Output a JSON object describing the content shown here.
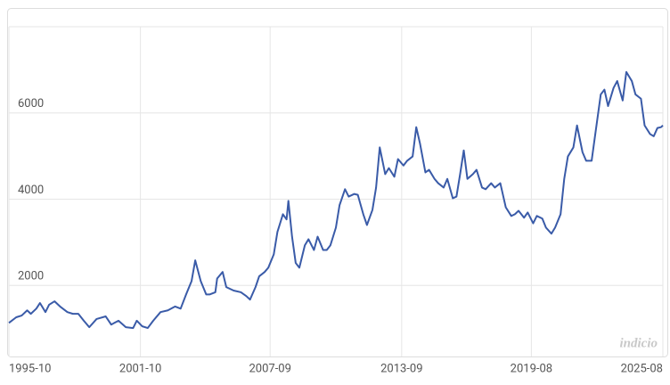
{
  "chart_data": {
    "type": "line",
    "watermark": "indicio",
    "xlim": [
      "1995-10",
      "2025-08"
    ],
    "xticks": [
      "1995-10",
      "2001-10",
      "2007-09",
      "2013-09",
      "2019-08",
      "2025-08"
    ],
    "ylim": [
      350,
      8000
    ],
    "yticks": [
      2000,
      4000,
      6000
    ],
    "grid": true,
    "series": [
      {
        "name": null,
        "color": "#3a5ba8",
        "x": [
          "1995-10",
          "1996-02",
          "1996-05",
          "1996-08",
          "1996-10",
          "1997-01",
          "1997-03",
          "1997-06",
          "1997-08",
          "1997-11",
          "1998-02",
          "1998-06",
          "1998-09",
          "1998-12",
          "1999-03",
          "1999-06",
          "1999-10",
          "2000-03",
          "2000-06",
          "2000-10",
          "2001-02",
          "2001-06",
          "2001-08",
          "2001-11",
          "2002-02",
          "2002-05",
          "2002-09",
          "2003-01",
          "2003-05",
          "2003-08",
          "2003-11",
          "2004-02",
          "2004-04",
          "2004-07",
          "2004-10",
          "2004-12",
          "2005-03",
          "2005-04",
          "2005-07",
          "2005-09",
          "2006-01",
          "2006-05",
          "2006-08",
          "2006-10",
          "2007-01",
          "2007-03",
          "2007-06",
          "2007-08",
          "2007-11",
          "2008-01",
          "2008-04",
          "2008-06",
          "2008-07",
          "2008-09",
          "2008-11",
          "2009-01",
          "2009-04",
          "2009-06",
          "2009-09",
          "2009-11",
          "2010-02",
          "2010-04",
          "2010-06",
          "2010-09",
          "2010-11",
          "2011-02",
          "2011-04",
          "2011-07",
          "2011-09",
          "2011-12",
          "2012-02",
          "2012-05",
          "2012-07",
          "2012-09",
          "2012-12",
          "2013-02",
          "2013-05",
          "2013-07",
          "2013-10",
          "2013-12",
          "2014-03",
          "2014-05",
          "2014-07",
          "2014-10",
          "2014-12",
          "2015-03",
          "2015-05",
          "2015-08",
          "2015-10",
          "2016-01",
          "2016-03",
          "2016-05",
          "2016-07",
          "2016-09",
          "2016-12",
          "2017-02",
          "2017-05",
          "2017-07",
          "2017-10",
          "2017-12",
          "2018-03",
          "2018-06",
          "2018-09",
          "2018-11",
          "2019-01",
          "2019-04",
          "2019-06",
          "2019-09",
          "2019-11",
          "2020-02",
          "2020-04",
          "2020-07",
          "2020-09",
          "2020-12",
          "2021-02",
          "2021-04",
          "2021-07",
          "2021-09",
          "2021-12",
          "2022-02",
          "2022-05",
          "2022-07",
          "2022-10",
          "2022-12",
          "2023-02",
          "2023-05",
          "2023-07",
          "2023-10",
          "2023-12",
          "2024-03",
          "2024-05",
          "2024-08",
          "2024-10",
          "2025-01",
          "2025-03",
          "2025-05",
          "2025-07",
          "2025-08"
        ],
        "values": [
          1130,
          1260,
          1300,
          1420,
          1340,
          1460,
          1590,
          1380,
          1550,
          1630,
          1510,
          1380,
          1340,
          1340,
          1180,
          1030,
          1220,
          1280,
          1090,
          1180,
          1030,
          1010,
          1180,
          1050,
          1010,
          1180,
          1380,
          1420,
          1510,
          1460,
          1790,
          2100,
          2580,
          2100,
          1790,
          1790,
          1840,
          2160,
          2310,
          1960,
          1880,
          1840,
          1750,
          1670,
          1960,
          2210,
          2310,
          2410,
          2720,
          3240,
          3650,
          3530,
          3960,
          3130,
          2520,
          2410,
          2930,
          3070,
          2820,
          3130,
          2820,
          2820,
          2930,
          3340,
          3860,
          4230,
          4060,
          4120,
          4100,
          3650,
          3400,
          3750,
          4270,
          5200,
          4580,
          4720,
          4520,
          4930,
          4780,
          4890,
          4990,
          5670,
          5300,
          4620,
          4680,
          4470,
          4370,
          4270,
          4470,
          4020,
          4060,
          4580,
          5130,
          4470,
          4580,
          4680,
          4270,
          4230,
          4370,
          4270,
          4370,
          3810,
          3610,
          3650,
          3730,
          3570,
          3690,
          3440,
          3610,
          3550,
          3340,
          3200,
          3340,
          3650,
          4470,
          4990,
          5200,
          5710,
          5090,
          4890,
          4890,
          5510,
          6430,
          6540,
          6160,
          6580,
          6740,
          6290,
          6950,
          6740,
          6430,
          6330,
          5710,
          5510,
          5460,
          5650,
          5670,
          5710
        ]
      }
    ]
  }
}
